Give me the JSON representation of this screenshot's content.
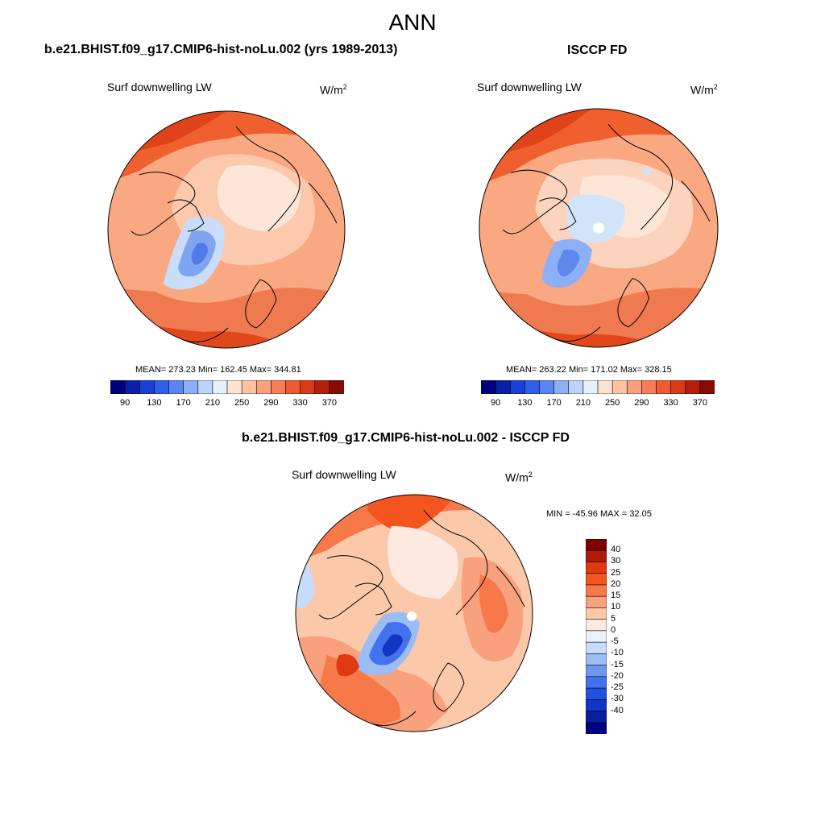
{
  "main_title": "ANN",
  "panels": [
    {
      "title": "b.e21.BHIST.f09_g17.CMIP6-hist-noLu.002 (yrs 1989-2013)",
      "variable": "Surf downwelling LW",
      "units_base": "W/m",
      "units_exp": "2",
      "stats": "MEAN= 273.23  Min= 162.45  Max= 344.81"
    },
    {
      "title": "ISCCP FD",
      "variable": "Surf downwelling LW",
      "units_base": "W/m",
      "units_exp": "2",
      "stats": "MEAN= 263.22  Min= 171.02  Max= 328.15"
    },
    {
      "title": "b.e21.BHIST.f09_g17.CMIP6-hist-noLu.002 - ISCCP FD",
      "variable": "Surf downwelling LW",
      "units_base": "W/m",
      "units_exp": "2",
      "stats": "MIN = -45.96 MAX =  32.05"
    }
  ],
  "abs_colorbar": {
    "colors": [
      "#00007f",
      "#0a1fa8",
      "#1a3fd6",
      "#2e5fe8",
      "#5a85f0",
      "#8caff5",
      "#bcd4f8",
      "#e6f0fb",
      "#fde2d0",
      "#fcc3a3",
      "#f9a07d",
      "#f67d57",
      "#f05a30",
      "#d93a16",
      "#b41f0b",
      "#850c05"
    ],
    "ticks": [
      "90",
      "130",
      "170",
      "210",
      "250",
      "290",
      "330",
      "370"
    ]
  },
  "diff_colorbar": {
    "colors": [
      "#7f0000",
      "#b01a07",
      "#e03a12",
      "#f4551e",
      "#f7794a",
      "#f9a07d",
      "#fcc8aa",
      "#fde9df",
      "#e9f2fc",
      "#c6dcf8",
      "#9bbdf3",
      "#6e97ef",
      "#4472ec",
      "#2450e0",
      "#1236c4",
      "#0a1fa0",
      "#000080"
    ],
    "labels": [
      "40",
      "30",
      "25",
      "20",
      "15",
      "10",
      "5",
      "0",
      "-5",
      "-10",
      "-15",
      "-20",
      "-25",
      "-30",
      "-40"
    ]
  }
}
